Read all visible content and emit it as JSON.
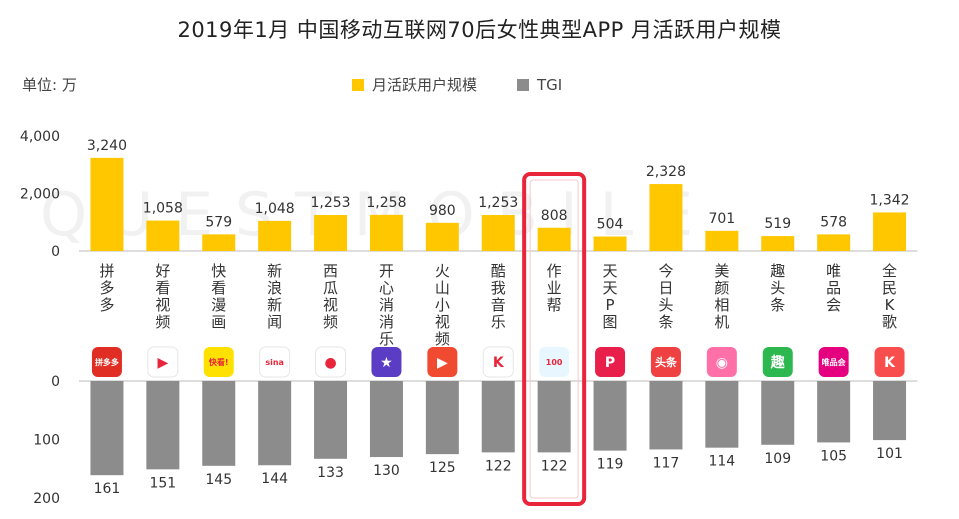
{
  "title": "2019年1月 中国移动互联网70后女性典型APP 月活跃用户规模",
  "unit_label": "单位: 万",
  "watermark": "QUESTMOBILE",
  "colors": {
    "mau": "#FFC700",
    "tgi": "#8C8C8C",
    "highlight": "#E8253A"
  },
  "chart_data": {
    "type": "bar",
    "title": "2019年1月 中国移动互联网70后女性典型APP 月活跃用户规模",
    "categories": [
      "拼多多",
      "好看视频",
      "快看漫画",
      "新浪新闻",
      "西瓜视频",
      "开心消消乐",
      "火山小视频",
      "酷我音乐",
      "作业帮",
      "天天P图",
      "今日头条",
      "美颜相机",
      "趣头条",
      "唯品会",
      "全民K歌"
    ],
    "series": [
      {
        "name": "月活跃用户规模",
        "values": [
          3240,
          1058,
          579,
          1048,
          1253,
          1258,
          980,
          1253,
          808,
          504,
          2328,
          701,
          519,
          578,
          1342
        ]
      },
      {
        "name": "TGI",
        "values": [
          161,
          151,
          145,
          144,
          133,
          130,
          125,
          122,
          122,
          119,
          117,
          114,
          109,
          105,
          101
        ]
      }
    ],
    "mau_axis": {
      "ylim": [
        0,
        4000
      ],
      "ticks": [
        "4,000",
        "2,000",
        "0"
      ]
    },
    "tgi_axis": {
      "ylim": [
        0,
        200
      ],
      "ticks": [
        "0",
        "100",
        "200"
      ]
    },
    "legend": "top-center",
    "highlight_category": "作业帮",
    "icons": [
      {
        "name": "pinduoduo-icon",
        "bg": "#E02E24",
        "text": "拼多多"
      },
      {
        "name": "haokan-icon",
        "bg": "#ffffff",
        "text": "▶"
      },
      {
        "name": "kuaikan-icon",
        "bg": "#FFE100",
        "text": "快看!"
      },
      {
        "name": "sina-icon",
        "bg": "#ffffff",
        "text": "sina"
      },
      {
        "name": "xigua-icon",
        "bg": "#ffffff",
        "text": "●"
      },
      {
        "name": "xiaoxiaole-icon",
        "bg": "#5B3CC4",
        "text": "★"
      },
      {
        "name": "huoshan-icon",
        "bg": "#F04B30",
        "text": "▶"
      },
      {
        "name": "kuwo-icon",
        "bg": "#ffffff",
        "text": "K"
      },
      {
        "name": "zuoyebang-icon",
        "bg": "#E8F6FF",
        "text": "100"
      },
      {
        "name": "tiantianptu-icon",
        "bg": "#E81E4B",
        "text": "P"
      },
      {
        "name": "toutiao-icon",
        "bg": "#F04142",
        "text": "头条"
      },
      {
        "name": "meiyan-icon",
        "bg": "#FF6FA8",
        "text": "◉"
      },
      {
        "name": "qutoutiao-icon",
        "bg": "#2DB84F",
        "text": "趣"
      },
      {
        "name": "vip-icon",
        "bg": "#E4007F",
        "text": "唯品会"
      },
      {
        "name": "quanminkge-icon",
        "bg": "#F84E4E",
        "text": "K"
      }
    ]
  }
}
